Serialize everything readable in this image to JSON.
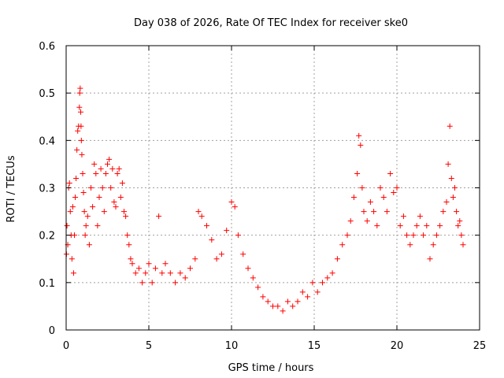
{
  "chart_data": {
    "type": "scatter",
    "title": "Day 038 of 2026, Rate Of TEC Index for receiver ske0",
    "xlabel": "GPS time / hours",
    "ylabel": "ROTI / TECUs",
    "xlim": [
      0,
      25
    ],
    "ylim": [
      0,
      0.6
    ],
    "xticks": [
      "0",
      "5",
      "10",
      "15",
      "20",
      "25"
    ],
    "yticks": [
      "0",
      "0.1",
      "0.2",
      "0.3",
      "0.4",
      "0.5",
      "0.6"
    ],
    "grid": true,
    "marker": "plus",
    "color": "#ff0000",
    "series": [
      {
        "x": [
          0.02,
          0.05,
          0.1,
          0.15,
          0.2,
          0.25,
          0.3,
          0.35,
          0.4,
          0.45,
          0.5,
          0.55,
          0.6,
          0.65,
          0.7,
          0.75,
          0.8,
          0.82,
          0.85,
          0.88,
          0.9,
          0.92,
          0.95,
          1.0,
          1.05,
          1.1,
          1.15,
          1.2,
          1.3,
          1.4,
          1.5,
          1.6,
          1.7,
          1.8,
          1.9,
          2.0,
          2.1,
          2.2,
          2.3,
          2.4,
          2.5,
          2.6,
          2.7,
          2.8,
          2.9,
          3.0,
          3.1,
          3.2,
          3.3,
          3.4,
          3.5,
          3.6,
          3.7,
          3.8,
          3.9,
          4.0,
          4.2,
          4.4,
          4.6,
          4.8,
          5.0,
          5.2,
          5.4,
          5.6,
          5.8,
          6.0,
          6.3,
          6.6,
          6.9,
          7.2,
          7.5,
          7.8,
          8.0,
          8.2,
          8.5,
          8.8,
          9.1,
          9.4,
          9.7,
          10.0,
          10.2,
          10.4,
          10.7,
          11.0,
          11.3,
          11.6,
          11.9,
          12.2,
          12.5,
          12.8,
          13.1,
          13.4,
          13.7,
          14.0,
          14.3,
          14.6,
          14.9,
          15.2,
          15.5,
          15.8,
          16.1,
          16.4,
          16.7,
          17.0,
          17.2,
          17.4,
          17.6,
          17.7,
          17.8,
          17.9,
          18.0,
          18.2,
          18.4,
          18.6,
          18.8,
          19.0,
          19.2,
          19.4,
          19.6,
          19.8,
          20.0,
          20.2,
          20.4,
          20.6,
          20.8,
          21.0,
          21.2,
          21.4,
          21.6,
          21.8,
          22.0,
          22.2,
          22.4,
          22.6,
          22.8,
          23.0,
          23.1,
          23.2,
          23.3,
          23.4,
          23.5,
          23.6,
          23.7,
          23.8,
          23.9,
          24.0
        ],
        "y": [
          0.16,
          0.22,
          0.18,
          0.3,
          0.31,
          0.25,
          0.2,
          0.15,
          0.26,
          0.12,
          0.2,
          0.28,
          0.32,
          0.38,
          0.42,
          0.43,
          0.47,
          0.5,
          0.51,
          0.46,
          0.43,
          0.4,
          0.37,
          0.33,
          0.29,
          0.25,
          0.2,
          0.22,
          0.24,
          0.18,
          0.3,
          0.26,
          0.35,
          0.33,
          0.22,
          0.28,
          0.34,
          0.3,
          0.25,
          0.33,
          0.35,
          0.36,
          0.3,
          0.34,
          0.27,
          0.26,
          0.33,
          0.34,
          0.28,
          0.31,
          0.25,
          0.24,
          0.2,
          0.18,
          0.15,
          0.14,
          0.12,
          0.13,
          0.1,
          0.12,
          0.14,
          0.1,
          0.13,
          0.24,
          0.12,
          0.14,
          0.12,
          0.1,
          0.12,
          0.11,
          0.13,
          0.15,
          0.25,
          0.24,
          0.22,
          0.19,
          0.15,
          0.16,
          0.21,
          0.27,
          0.26,
          0.2,
          0.16,
          0.13,
          0.11,
          0.09,
          0.07,
          0.06,
          0.05,
          0.05,
          0.04,
          0.06,
          0.05,
          0.06,
          0.08,
          0.07,
          0.1,
          0.08,
          0.1,
          0.11,
          0.12,
          0.15,
          0.18,
          0.2,
          0.23,
          0.28,
          0.33,
          0.41,
          0.39,
          0.3,
          0.25,
          0.23,
          0.27,
          0.25,
          0.22,
          0.3,
          0.28,
          0.25,
          0.33,
          0.29,
          0.3,
          0.22,
          0.24,
          0.2,
          0.18,
          0.2,
          0.22,
          0.24,
          0.2,
          0.22,
          0.15,
          0.18,
          0.2,
          0.22,
          0.25,
          0.27,
          0.35,
          0.43,
          0.32,
          0.28,
          0.3,
          0.25,
          0.22,
          0.23,
          0.2,
          0.18
        ]
      }
    ]
  }
}
